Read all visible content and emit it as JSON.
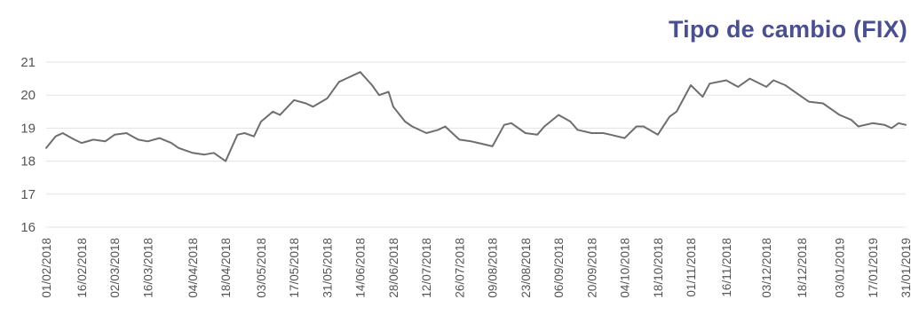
{
  "chart_data": {
    "type": "line",
    "title": "Tipo de cambio (FIX)",
    "xlabel": "",
    "ylabel": "",
    "ylim": [
      16,
      21
    ],
    "yticks": [
      "16",
      "17",
      "18",
      "19",
      "20",
      "21"
    ],
    "grid": true,
    "legend": "none",
    "line_color": "#6e6e6e",
    "title_color": "#4a4f8f",
    "xtick_labels": [
      "01/02/2018",
      "16/02/2018",
      "02/03/2018",
      "16/03/2018",
      "04/04/2018",
      "18/04/2018",
      "03/05/2018",
      "17/05/2018",
      "31/05/2018",
      "14/06/2018",
      "28/06/2018",
      "12/07/2018",
      "26/07/2018",
      "09/08/2018",
      "23/08/2018",
      "06/09/2018",
      "20/09/2018",
      "04/10/2018",
      "18/10/2018",
      "01/11/2018",
      "16/11/2018",
      "03/12/2018",
      "18/12/2018",
      "03/01/2019",
      "17/01/2019",
      "31/01/2019"
    ],
    "x": [
      "01/02/2018",
      "05/02/2018",
      "08/02/2018",
      "13/02/2018",
      "16/02/2018",
      "21/02/2018",
      "26/02/2018",
      "02/03/2018",
      "07/03/2018",
      "12/03/2018",
      "16/03/2018",
      "21/03/2018",
      "26/03/2018",
      "29/03/2018",
      "04/04/2018",
      "09/04/2018",
      "13/04/2018",
      "18/04/2018",
      "23/04/2018",
      "26/04/2018",
      "30/04/2018",
      "03/05/2018",
      "08/05/2018",
      "11/05/2018",
      "17/05/2018",
      "22/05/2018",
      "25/05/2018",
      "31/05/2018",
      "05/06/2018",
      "08/06/2018",
      "14/06/2018",
      "19/06/2018",
      "22/06/2018",
      "26/06/2018",
      "28/06/2018",
      "03/07/2018",
      "06/07/2018",
      "12/07/2018",
      "17/07/2018",
      "20/07/2018",
      "26/07/2018",
      "31/07/2018",
      "03/08/2018",
      "09/08/2018",
      "14/08/2018",
      "17/08/2018",
      "23/08/2018",
      "28/08/2018",
      "31/08/2018",
      "06/09/2018",
      "11/09/2018",
      "14/09/2018",
      "20/09/2018",
      "25/09/2018",
      "28/09/2018",
      "04/10/2018",
      "09/10/2018",
      "12/10/2018",
      "18/10/2018",
      "23/10/2018",
      "26/10/2018",
      "01/11/2018",
      "06/11/2018",
      "09/11/2018",
      "16/11/2018",
      "21/11/2018",
      "26/11/2018",
      "03/12/2018",
      "06/12/2018",
      "11/12/2018",
      "18/12/2018",
      "21/12/2018",
      "27/12/2018",
      "03/01/2019",
      "08/01/2019",
      "11/01/2019",
      "17/01/2019",
      "22/01/2019",
      "25/01/2019",
      "28/01/2019",
      "31/01/2019"
    ],
    "series": [
      {
        "values": [
          18.4,
          18.75,
          18.85,
          18.65,
          18.55,
          18.65,
          18.6,
          18.8,
          18.85,
          18.65,
          18.6,
          18.7,
          18.55,
          18.4,
          18.25,
          18.2,
          18.25,
          18.0,
          18.8,
          18.85,
          18.75,
          19.2,
          19.5,
          19.4,
          19.85,
          19.75,
          19.65,
          19.9,
          20.4,
          20.5,
          20.7,
          20.3,
          20.0,
          20.1,
          19.65,
          19.2,
          19.05,
          18.85,
          18.95,
          19.05,
          18.65,
          18.6,
          18.55,
          18.45,
          19.1,
          19.15,
          18.85,
          18.8,
          19.05,
          19.4,
          19.2,
          18.95,
          18.85,
          18.85,
          18.8,
          18.7,
          19.05,
          19.05,
          18.8,
          19.35,
          19.5,
          20.3,
          19.95,
          20.35,
          20.45,
          20.25,
          20.5,
          20.25,
          20.45,
          20.3,
          19.95,
          19.8,
          19.75,
          19.4,
          19.25,
          19.05,
          19.15,
          19.1,
          19.0,
          19.15,
          19.1
        ]
      }
    ]
  }
}
